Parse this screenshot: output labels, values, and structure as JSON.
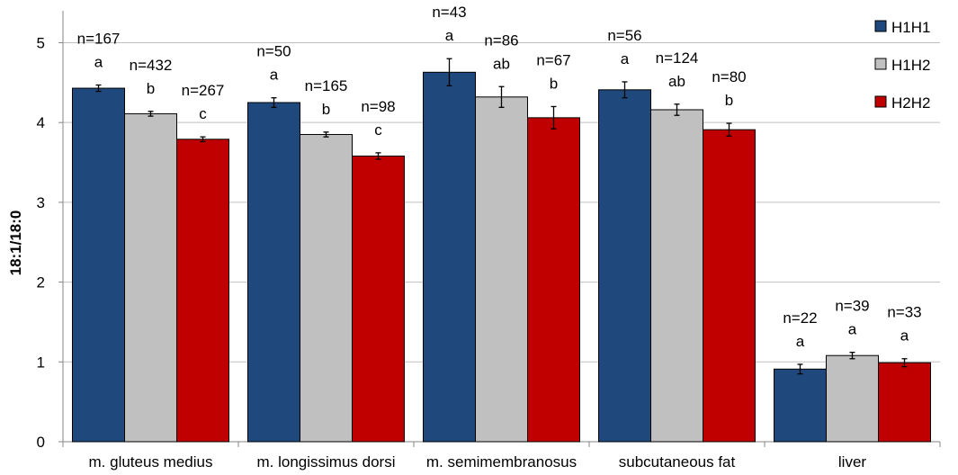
{
  "chart_data": {
    "type": "bar",
    "title": "",
    "xlabel": "",
    "ylabel": "18:1/18:0",
    "ylim": [
      0,
      5.4
    ],
    "yticks": [
      0,
      1,
      2,
      3,
      4,
      5
    ],
    "grid": "horizontal",
    "legend_position": "top-right",
    "categories": [
      "m. gluteus medius",
      "m. longissimus dorsi",
      "m. semimembranosus",
      "subcutaneous fat",
      "liver"
    ],
    "series": [
      {
        "name": "H1H1",
        "color": "#1F497D",
        "values": [
          4.43,
          4.25,
          4.63,
          4.41,
          0.91
        ],
        "errors": [
          0.04,
          0.06,
          0.17,
          0.1,
          0.06
        ],
        "n_labels": [
          "n=167",
          "n=50",
          "n=43",
          "n=56",
          "n=22"
        ],
        "letters": [
          "a",
          "a",
          "a",
          "a",
          "a"
        ]
      },
      {
        "name": "H1H2",
        "color": "#C0C0C0",
        "values": [
          4.11,
          3.85,
          4.32,
          4.16,
          1.08
        ],
        "errors": [
          0.03,
          0.03,
          0.13,
          0.07,
          0.04
        ],
        "n_labels": [
          "n=432",
          "n=165",
          "n=86",
          "n=124",
          "n=39"
        ],
        "letters": [
          "b",
          "b",
          "ab",
          "ab",
          "a"
        ]
      },
      {
        "name": "H2H2",
        "color": "#C00000",
        "values": [
          3.79,
          3.58,
          4.06,
          3.91,
          0.99
        ],
        "errors": [
          0.03,
          0.04,
          0.14,
          0.08,
          0.05
        ],
        "n_labels": [
          "n=267",
          "n=98",
          "n=67",
          "n=80",
          "n=33"
        ],
        "letters": [
          "c",
          "c",
          "b",
          "b",
          "a"
        ]
      }
    ]
  }
}
